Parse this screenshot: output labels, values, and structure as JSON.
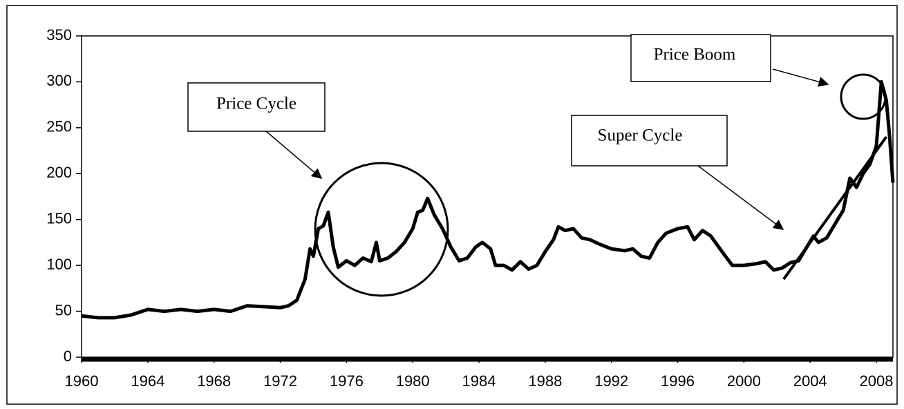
{
  "chart_data": {
    "type": "line",
    "x": [
      1960,
      1961,
      1962,
      1963,
      1964,
      1965,
      1966,
      1967,
      1968,
      1969,
      1970,
      1971,
      1972,
      1972.5,
      1973,
      1973.5,
      1973.8,
      1974,
      1974.3,
      1974.6,
      1974.9,
      1975.2,
      1975.5,
      1976,
      1976.5,
      1977,
      1977.5,
      1977.8,
      1978,
      1978.5,
      1979,
      1979.5,
      1980,
      1980.3,
      1980.6,
      1980.9,
      1981.3,
      1981.8,
      1982.3,
      1982.8,
      1983.3,
      1983.8,
      1984.2,
      1984.7,
      1985,
      1985.5,
      1986,
      1986.5,
      1987,
      1987.5,
      1988,
      1988.5,
      1988.8,
      1989.2,
      1989.7,
      1990.2,
      1990.7,
      1991.3,
      1992,
      1992.8,
      1993.3,
      1993.8,
      1994.3,
      1994.8,
      1995.3,
      1996,
      1996.6,
      1997,
      1997.5,
      1998,
      1998.8,
      1999.3,
      2000,
      2000.8,
      2001.3,
      2001.8,
      2002.3,
      2002.8,
      2003.3,
      2003.8,
      2004.2,
      2004.5,
      2005,
      2005.5,
      2006,
      2006.4,
      2006.8,
      2007.2,
      2007.6,
      2008,
      2008.3,
      2008.6,
      2008.8,
      2009
    ],
    "values": [
      45,
      43,
      43,
      46,
      52,
      50,
      52,
      50,
      52,
      50,
      56,
      55,
      54,
      56,
      62,
      85,
      118,
      110,
      140,
      143,
      158,
      120,
      98,
      105,
      100,
      108,
      104,
      125,
      105,
      108,
      115,
      125,
      140,
      158,
      160,
      173,
      155,
      140,
      120,
      105,
      108,
      120,
      125,
      118,
      100,
      100,
      95,
      104,
      96,
      100,
      115,
      128,
      142,
      138,
      140,
      130,
      128,
      123,
      118,
      116,
      118,
      110,
      108,
      125,
      135,
      140,
      142,
      128,
      138,
      132,
      112,
      100,
      100,
      102,
      104,
      95,
      97,
      103,
      105,
      120,
      132,
      125,
      130,
      145,
      160,
      195,
      185,
      200,
      210,
      230,
      300,
      280,
      240,
      190
    ],
    "trend": {
      "x": [
        2002.4,
        2008.6
      ],
      "values": [
        85,
        240
      ]
    },
    "xlim": [
      1960,
      2009
    ],
    "xticks": [
      1960,
      1964,
      1968,
      1972,
      1976,
      1980,
      1984,
      1988,
      1992,
      1996,
      2000,
      2004,
      2008
    ],
    "ylim": [
      0,
      350
    ],
    "yticks": [
      0,
      50,
      100,
      150,
      200,
      250,
      300,
      350
    ],
    "color": "#000000",
    "annotations": [
      "Price Cycle",
      "Price Boom",
      "Super Cycle"
    ]
  }
}
